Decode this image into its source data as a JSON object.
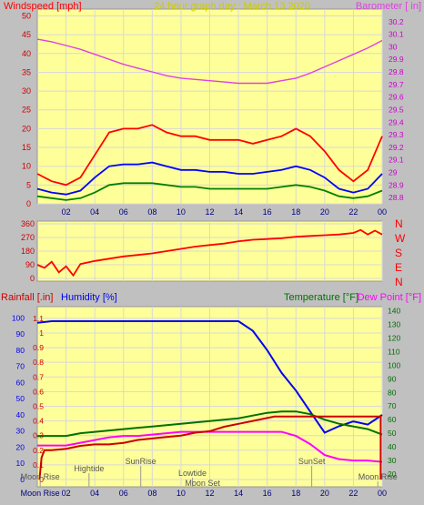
{
  "title": "24 hour graph day : March 13 2020",
  "colors": {
    "background": "#c0c0c0",
    "plot_bg": "#ffff99",
    "grid": "#d8d8d8",
    "title": "#cccc00",
    "wind_avg": "#008000",
    "wind_speed": "#0000ff",
    "wind_gust": "#ff0000",
    "barometer": "#e040e0",
    "direction": "#ff0000",
    "rainfall": "#cc0000",
    "humidity": "#0000ee",
    "temperature": "#007000",
    "dewpoint": "#ff00ff"
  },
  "chart_data": [
    {
      "type": "line",
      "id": "wind_baro",
      "left_axis_label": "Windspeed [mph]",
      "right_axis_label": "Barometer [ in]",
      "x_ticks": [
        "02",
        "04",
        "06",
        "08",
        "10",
        "12",
        "14",
        "16",
        "18",
        "20",
        "22",
        "00"
      ],
      "left_ticks": [
        0,
        5,
        10,
        15,
        20,
        25,
        30,
        35,
        40,
        45,
        50
      ],
      "right_ticks": [
        "28.8",
        "28.9",
        "29",
        "29.1",
        "29.2",
        "29.3",
        "29.4",
        "29.5",
        "29.6",
        "29.7",
        "29.8",
        "29.9",
        "30",
        "30.1",
        "30.2"
      ],
      "xlim": [
        0,
        24
      ],
      "ylim_left": [
        0,
        50
      ],
      "ylim_right": [
        28.75,
        30.3
      ],
      "x": [
        0,
        1,
        2,
        3,
        4,
        5,
        6,
        7,
        8,
        9,
        10,
        11,
        12,
        13,
        14,
        15,
        16,
        17,
        18,
        19,
        20,
        21,
        22,
        23,
        24
      ],
      "series": [
        {
          "key": "gust",
          "axis": "left",
          "values": [
            8,
            6,
            5,
            7,
            13,
            19,
            20,
            20,
            21,
            19,
            18,
            18,
            17,
            17,
            17,
            16,
            17,
            18,
            20,
            18,
            14,
            9,
            6,
            9,
            18
          ]
        },
        {
          "key": "speed",
          "axis": "left",
          "values": [
            4,
            3,
            2.5,
            3.5,
            7,
            10,
            10.5,
            10.5,
            11,
            10,
            9,
            9,
            8.5,
            8.5,
            8,
            8,
            8.5,
            9,
            10,
            9,
            7,
            4,
            3,
            4,
            8
          ]
        },
        {
          "key": "avg",
          "axis": "left",
          "values": [
            2,
            1.5,
            1,
            1.5,
            3,
            5,
            5.5,
            5.5,
            5.5,
            5,
            4.5,
            4.5,
            4,
            4,
            4,
            4,
            4,
            4.5,
            5,
            4.5,
            3.5,
            2,
            1.5,
            2,
            3.5
          ]
        },
        {
          "key": "barometer",
          "axis": "right",
          "values": [
            30.06,
            30.04,
            30.01,
            29.98,
            29.94,
            29.9,
            29.86,
            29.83,
            29.8,
            29.77,
            29.75,
            29.74,
            29.73,
            29.72,
            29.71,
            29.71,
            29.71,
            29.73,
            29.75,
            29.79,
            29.84,
            29.89,
            29.94,
            29.99,
            30.05
          ]
        }
      ]
    },
    {
      "type": "line",
      "id": "direction",
      "right_axis_letters": [
        "N",
        "W",
        "S",
        "E",
        "N"
      ],
      "left_ticks": [
        0,
        90,
        180,
        270,
        360
      ],
      "ylim": [
        0,
        360
      ],
      "x": [
        0,
        0.5,
        1,
        1.5,
        2,
        2.5,
        3,
        4,
        5,
        6,
        7,
        8,
        9,
        10,
        11,
        12,
        13,
        14,
        15,
        16,
        17,
        18,
        19,
        20,
        21,
        22,
        22.5,
        23,
        23.5,
        24
      ],
      "values": [
        90,
        70,
        110,
        40,
        80,
        20,
        95,
        115,
        130,
        145,
        155,
        165,
        180,
        195,
        210,
        220,
        230,
        245,
        255,
        260,
        265,
        275,
        280,
        285,
        290,
        300,
        320,
        290,
        315,
        290
      ]
    },
    {
      "type": "line",
      "id": "rain_hum_temp",
      "left_axis_label": "Rainfall [.in]",
      "humidity_label": "Humidity [%]",
      "temperature_label": "Temperature [°F]",
      "dewpoint_label": "Dew Point [°F]",
      "rain_ticks": [
        "0",
        "0.1",
        "0.2",
        "0.3",
        "0.4",
        "0.5",
        "0.6",
        "0.7",
        "0.8",
        "0.9",
        "1",
        "1.1"
      ],
      "hum_ticks": [
        0,
        10,
        20,
        30,
        40,
        50,
        60,
        70,
        80,
        90,
        100
      ],
      "temp_ticks": [
        20,
        30,
        40,
        50,
        60,
        70,
        80,
        90,
        100,
        110,
        120,
        130,
        140
      ],
      "xlim": [
        0,
        24
      ],
      "ylim_rain": [
        0,
        1.18
      ],
      "ylim_hum": [
        0,
        107
      ],
      "ylim_temp": [
        16,
        143
      ],
      "x": [
        0,
        1,
        2,
        3,
        4,
        5,
        6,
        7,
        8,
        9,
        10,
        11,
        12,
        13,
        14,
        15,
        16,
        17,
        18,
        19,
        20,
        21,
        22,
        23,
        24
      ],
      "series": [
        {
          "key": "humidity",
          "axis": "hum",
          "values": [
            97,
            98,
            98,
            98,
            98,
            98,
            98,
            98,
            98,
            98,
            98,
            98,
            98,
            98,
            98,
            92,
            80,
            66,
            55,
            42,
            29,
            33,
            36,
            34,
            40
          ]
        },
        {
          "key": "temperature",
          "axis": "temp",
          "values": [
            48,
            48,
            48,
            50,
            51,
            52,
            53,
            54,
            55,
            56,
            57,
            58,
            59,
            60,
            61,
            63,
            65,
            66,
            66,
            64,
            60,
            57,
            55,
            53,
            49
          ]
        },
        {
          "key": "dewpoint",
          "axis": "temp",
          "values": [
            41,
            41,
            41,
            43,
            45,
            47,
            48,
            48,
            49,
            50,
            51,
            51,
            51,
            51,
            51,
            51,
            51,
            51,
            48,
            42,
            34,
            31,
            30,
            30,
            29
          ]
        }
      ],
      "rainfall": {
        "x": [
          0.15,
          0.3,
          0.5,
          1,
          2,
          3,
          4,
          5,
          6,
          7,
          8,
          9,
          10,
          11,
          12,
          13,
          14,
          15,
          16,
          16.5,
          17,
          18,
          19,
          20,
          21,
          22,
          23,
          23.9,
          23.9
        ],
        "values": [
          0,
          0.15,
          0.2,
          0.2,
          0.21,
          0.23,
          0.24,
          0.24,
          0.25,
          0.27,
          0.28,
          0.29,
          0.3,
          0.32,
          0.33,
          0.36,
          0.38,
          0.4,
          0.42,
          0.43,
          0.43,
          0.43,
          0.43,
          0.43,
          0.43,
          0.43,
          0.43,
          0.43,
          0
        ]
      },
      "x_ticks": [
        "02",
        "04",
        "06",
        "08",
        "10",
        "12",
        "14",
        "16",
        "18",
        "20",
        "22",
        "00"
      ],
      "annotations": [
        {
          "text": "Moon Rise",
          "x": 0.2,
          "row": "high"
        },
        {
          "text": "Hightide",
          "x": 3.6,
          "row": "mid"
        },
        {
          "text": "SunRise",
          "x": 7.2,
          "row": "top"
        },
        {
          "text": "Lowtide",
          "x": 10.8,
          "row": "mid2"
        },
        {
          "text": "Moon Set",
          "x": 11.5,
          "row": "low"
        },
        {
          "text": "SunSet",
          "x": 19.1,
          "row": "top"
        },
        {
          "text": "Moon Rise",
          "x": 23.7,
          "row": "high"
        },
        {
          "text": "Moon Rise",
          "x": 0.2,
          "row": "axis"
        }
      ]
    }
  ]
}
